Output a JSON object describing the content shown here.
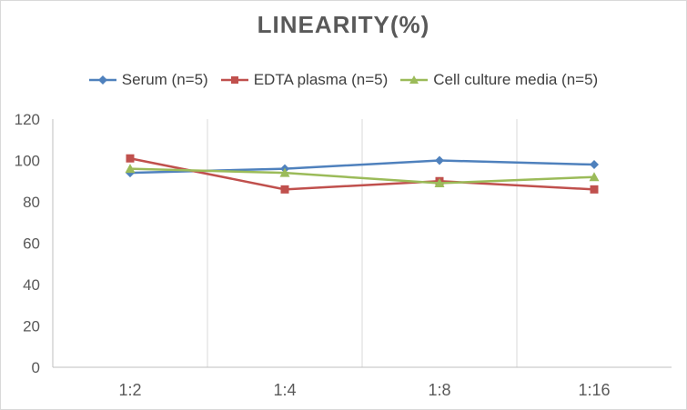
{
  "chart_data": {
    "type": "line",
    "title": "LINEARITY(%)",
    "xlabel": "",
    "ylabel": "",
    "categories": [
      "1:2",
      "1:4",
      "1:8",
      "1:16"
    ],
    "ylim": [
      0,
      120
    ],
    "yticks": [
      0,
      20,
      40,
      60,
      80,
      100,
      120
    ],
    "grid": "vertical",
    "legend_position": "top",
    "series": [
      {
        "name": "Serum (n=5)",
        "values": [
          94,
          96,
          100,
          98
        ],
        "color": "#4f81bd",
        "marker": "diamond"
      },
      {
        "name": "EDTA plasma (n=5)",
        "values": [
          101,
          86,
          90,
          86
        ],
        "color": "#c0504d",
        "marker": "square"
      },
      {
        "name": "Cell culture media (n=5)",
        "values": [
          96,
          94,
          89,
          92
        ],
        "color": "#9bbb59",
        "marker": "triangle"
      }
    ]
  }
}
